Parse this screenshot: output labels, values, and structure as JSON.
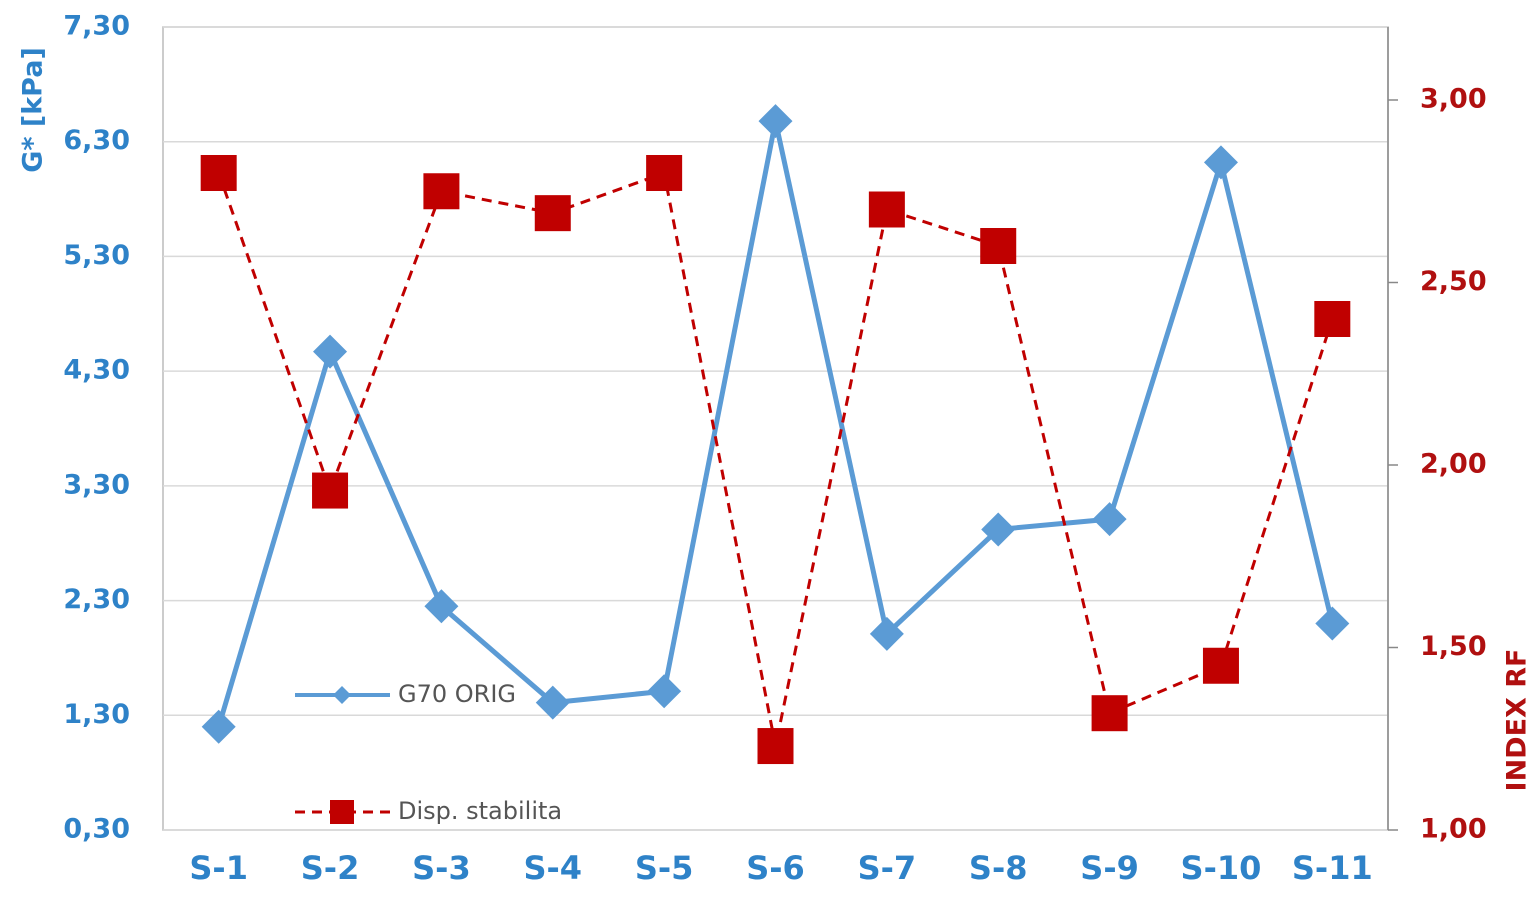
{
  "chart_data": {
    "type": "line",
    "y_label": "G* [kPa]",
    "y2_label": "INDEX RF",
    "categories": [
      "S-1",
      "S-2",
      "S-3",
      "S-4",
      "S-5",
      "S-6",
      "S-7",
      "S-8",
      "S-9",
      "S-10",
      "S-11"
    ],
    "series": [
      {
        "name": "G70 ORIG",
        "color": "#5b9bd5",
        "values": [
          1.2,
          4.47,
          2.25,
          1.41,
          1.51,
          6.48,
          2.01,
          2.92,
          3.01,
          6.12,
          2.1
        ]
      },
      {
        "name": "Disp. stabilita",
        "color": "#c00000",
        "axis": "y2",
        "values": [
          2.8,
          1.93,
          2.75,
          2.69,
          2.8,
          1.23,
          2.7,
          2.6,
          1.32,
          1.45,
          2.4
        ]
      }
    ],
    "ylim": [
      0.3,
      7.3
    ],
    "yticks": [
      {
        "value": 0.3,
        "label": "0,30"
      },
      {
        "value": 1.3,
        "label": "1,30"
      },
      {
        "value": 2.3,
        "label": "2,30"
      },
      {
        "value": 3.3,
        "label": "3,30"
      },
      {
        "value": 4.3,
        "label": "4,30"
      },
      {
        "value": 5.3,
        "label": "5,30"
      },
      {
        "value": 6.3,
        "label": "6,30"
      },
      {
        "value": 7.3,
        "label": "7,30"
      }
    ],
    "y2lim": [
      1.0,
      3.2
    ],
    "y2ticks": [
      {
        "value": 1.0,
        "label": "1,00"
      },
      {
        "value": 1.5,
        "label": "1,50"
      },
      {
        "value": 2.0,
        "label": "2,00"
      },
      {
        "value": 2.5,
        "label": "2,50"
      },
      {
        "value": 3.0,
        "label": "3,00"
      }
    ],
    "grid": true
  }
}
